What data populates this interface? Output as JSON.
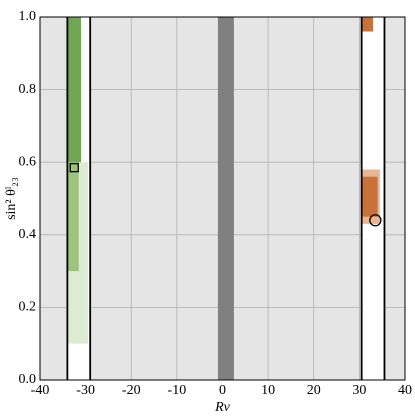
{
  "chart_data": {
    "type": "region",
    "xlabel": "Rν",
    "ylabel": "sin² θˡ₂₃",
    "xlim": [
      -40,
      40
    ],
    "ylim": [
      0,
      1
    ],
    "xticks": [
      -40,
      -30,
      -20,
      -10,
      0,
      10,
      20,
      30,
      40
    ],
    "yticks": [
      {
        "value": 0,
        "label": "0.0"
      },
      0.2,
      0.4,
      0.6,
      0.8,
      {
        "value": 1,
        "label": "1.0"
      }
    ],
    "grid": true,
    "background": "#e5e5e5",
    "regions": [
      {
        "x": [
          -34,
          -29
        ],
        "y": [
          0,
          1
        ],
        "color": "#ffffff"
      },
      {
        "x": [
          30.5,
          35.5
        ],
        "y": [
          0,
          1
        ],
        "color": "#ffffff"
      },
      {
        "x": [
          -1,
          2.5
        ],
        "y": [
          0,
          1
        ],
        "color": "#808080"
      },
      {
        "x": [
          -34,
          -29.5
        ],
        "y": [
          0.1,
          0.6
        ],
        "color": "#dcebd2"
      },
      {
        "x": [
          -34,
          -31.5
        ],
        "y": [
          0.3,
          0.6
        ],
        "color": "#9cc47f"
      },
      {
        "x": [
          -34,
          -31
        ],
        "y": [
          0.6,
          1
        ],
        "color": "#72a655"
      },
      {
        "x": [
          30.5,
          34.5
        ],
        "y": [
          0.43,
          0.58
        ],
        "color": "#e9b592"
      },
      {
        "x": [
          30.5,
          34
        ],
        "y": [
          0.45,
          0.56
        ],
        "color": "#c8713a"
      },
      {
        "x": [
          30.5,
          33
        ],
        "y": [
          0.96,
          1
        ],
        "color": "#c8713a"
      }
    ],
    "vlines": [
      -34,
      -29,
      30.5,
      35.5
    ],
    "markers": [
      {
        "x": -32.5,
        "y": 0.585,
        "shape": "square"
      },
      {
        "x": 33.5,
        "y": 0.44,
        "shape": "circle"
      }
    ]
  }
}
